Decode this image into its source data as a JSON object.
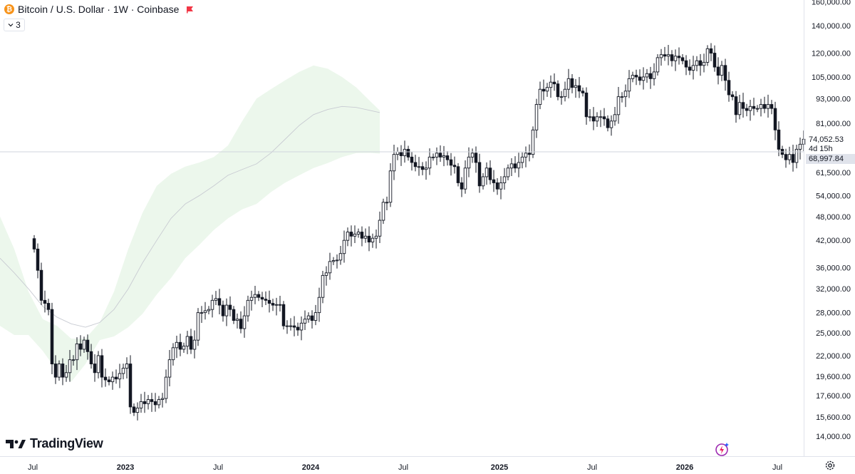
{
  "header": {
    "symbol_title": "Bitcoin / U.S. Dollar · 1W · Coinbase",
    "coin_icon": "bitcoin-icon",
    "flag_icon": "flag-icon",
    "flag_color": "#f23645",
    "indicator_count": "3"
  },
  "branding": {
    "name": "TradingView"
  },
  "price_boxes": {
    "current_price": "74,052.53",
    "countdown": "4d 15h",
    "crosshair_price": "68,997.84"
  },
  "colors": {
    "up_candle": "#ffffff",
    "down_candle": "#131722",
    "band_up": "#e6f4e6",
    "band_down": "#fbe3e3",
    "accent": "#9c27b0"
  },
  "chart_data": {
    "type": "candlestick",
    "scale": "log",
    "x_ticks": [
      "Jul",
      "2023",
      "Jul",
      "2024",
      "Jul",
      "2025",
      "Jul",
      "2026",
      "Jul"
    ],
    "x_tick_bold": [
      false,
      true,
      false,
      true,
      false,
      true,
      false,
      true,
      false
    ],
    "y_ticks": [
      160000,
      140000,
      120000,
      105000,
      93000,
      81000,
      61500,
      54000,
      48000,
      42000,
      36000,
      32000,
      28000,
      25000,
      22000,
      19600,
      17600,
      15600,
      14000
    ],
    "y_tick_labels": [
      "160,000.00",
      "140,000.00",
      "120,000.00",
      "105,000.00",
      "93,000.00",
      "81,000.00",
      "61,500.00",
      "54,000.00",
      "48,000.00",
      "42,000.00",
      "36,000.00",
      "32,000.00",
      "28,000.00",
      "25,000.00",
      "22,000.00",
      "19,600.00",
      "17,600.00",
      "15,600.00",
      "14,000.00"
    ],
    "current_price": 74052.53,
    "crosshair_price": 68997.84,
    "closes": [
      40000,
      35500,
      30000,
      29500,
      28500,
      21000,
      19500,
      21000,
      19500,
      20000,
      21500,
      21500,
      23500,
      22800,
      24000,
      22500,
      21000,
      20000,
      22000,
      19500,
      19200,
      19000,
      19500,
      19300,
      19900,
      20500,
      21000,
      16500,
      16000,
      16400,
      17000,
      16800,
      17200,
      17000,
      16700,
      17200,
      17300,
      19500,
      21500,
      23000,
      23700,
      22800,
      23200,
      24500,
      22800,
      24000,
      28000,
      28000,
      28300,
      28500,
      30000,
      30300,
      29200,
      27500,
      29200,
      28500,
      26800,
      27000,
      25600,
      27500,
      30000,
      30500,
      31000,
      30500,
      30200,
      30000,
      29500,
      29200,
      29300,
      29300,
      26000,
      26000,
      26000,
      25800,
      25400,
      26400,
      27000,
      27500,
      26800,
      28000,
      30500,
      34500,
      35000,
      37300,
      37500,
      37600,
      39000,
      42000,
      44000,
      43000,
      43500,
      44000,
      42500,
      43000,
      41600,
      42500,
      43000,
      47000,
      52000,
      52000,
      62000,
      68000,
      69000,
      67500,
      70000,
      67000,
      65000,
      63500,
      63500,
      62500,
      63000,
      67000,
      67000,
      68500,
      67000,
      67500,
      66000,
      64000,
      63500,
      58000,
      56000,
      63000,
      67000,
      68500,
      65000,
      57000,
      60000,
      63000,
      59000,
      58000,
      56000,
      58000,
      60000,
      63000,
      64500,
      63000,
      65000,
      67000,
      68500,
      68000,
      78000,
      90000,
      98000,
      97000,
      99000,
      102000,
      101000,
      94000,
      94000,
      98000,
      104000,
      99000,
      100000,
      97000,
      96000,
      84000,
      84000,
      82000,
      84000,
      84000,
      83000,
      79000,
      82000,
      85000,
      94000,
      94000,
      97000,
      104000,
      106000,
      105000,
      103000,
      105000,
      107000,
      104000,
      108000,
      117000,
      119000,
      118000,
      119000,
      115000,
      118000,
      117000,
      115000,
      111000,
      109000,
      112000,
      115000,
      112000,
      114000,
      123000,
      120000,
      111000,
      106000,
      112000,
      103000,
      95000,
      94000,
      85000,
      91000,
      88000,
      87000,
      89000,
      88000,
      88000,
      90000,
      88000,
      90000,
      88000,
      78000,
      70000,
      68000,
      66000,
      68000,
      65000,
      70000,
      72000,
      74052
    ],
    "mid_line": [
      [
        0,
        38000
      ],
      [
        20,
        35000
      ],
      [
        40,
        32000
      ],
      [
        60,
        29000
      ],
      [
        80,
        27300
      ],
      [
        100,
        26300
      ],
      [
        120,
        25800
      ],
      [
        140,
        26500
      ],
      [
        160,
        28500
      ],
      [
        180,
        32000
      ],
      [
        200,
        37000
      ],
      [
        220,
        42000
      ],
      [
        240,
        47500
      ],
      [
        260,
        51500
      ],
      [
        280,
        54000
      ],
      [
        300,
        57000
      ],
      [
        320,
        60500
      ],
      [
        340,
        62500
      ],
      [
        360,
        64500
      ],
      [
        380,
        68500
      ],
      [
        400,
        74000
      ],
      [
        420,
        80000
      ],
      [
        440,
        85000
      ],
      [
        460,
        87500
      ],
      [
        480,
        89000
      ],
      [
        500,
        88500
      ],
      [
        520,
        87000
      ],
      [
        533,
        86000
      ]
    ],
    "band_upper": [
      [
        0,
        48000
      ],
      [
        20,
        40000
      ],
      [
        40,
        31500
      ],
      [
        60,
        27000
      ],
      [
        80,
        26000
      ],
      [
        100,
        24200
      ],
      [
        120,
        24200
      ],
      [
        140,
        26500
      ],
      [
        160,
        31500
      ],
      [
        180,
        40000
      ],
      [
        200,
        49000
      ],
      [
        220,
        57000
      ],
      [
        240,
        61000
      ],
      [
        260,
        63500
      ],
      [
        280,
        65000
      ],
      [
        300,
        67000
      ],
      [
        320,
        71500
      ],
      [
        340,
        82000
      ],
      [
        360,
        93000
      ],
      [
        380,
        98000
      ],
      [
        400,
        103000
      ],
      [
        420,
        108000
      ],
      [
        440,
        112000
      ],
      [
        460,
        110000
      ],
      [
        480,
        105000
      ],
      [
        500,
        99000
      ],
      [
        520,
        91500
      ],
      [
        533,
        87000
      ]
    ],
    "band_lower": [
      [
        0,
        26000
      ],
      [
        20,
        24700
      ],
      [
        40,
        24700
      ],
      [
        60,
        22600
      ],
      [
        80,
        20200
      ],
      [
        100,
        19000
      ],
      [
        120,
        21000
      ],
      [
        140,
        24000
      ],
      [
        160,
        24500
      ],
      [
        180,
        25800
      ],
      [
        200,
        27800
      ],
      [
        220,
        31000
      ],
      [
        240,
        34000
      ],
      [
        260,
        38000
      ],
      [
        280,
        41000
      ],
      [
        300,
        44500
      ],
      [
        320,
        47500
      ],
      [
        340,
        50000
      ],
      [
        360,
        51500
      ],
      [
        380,
        55000
      ],
      [
        400,
        58000
      ],
      [
        420,
        60500
      ],
      [
        440,
        63000
      ],
      [
        460,
        64800
      ],
      [
        480,
        67000
      ],
      [
        500,
        68500
      ],
      [
        520,
        68600
      ],
      [
        533,
        68300
      ]
    ]
  }
}
